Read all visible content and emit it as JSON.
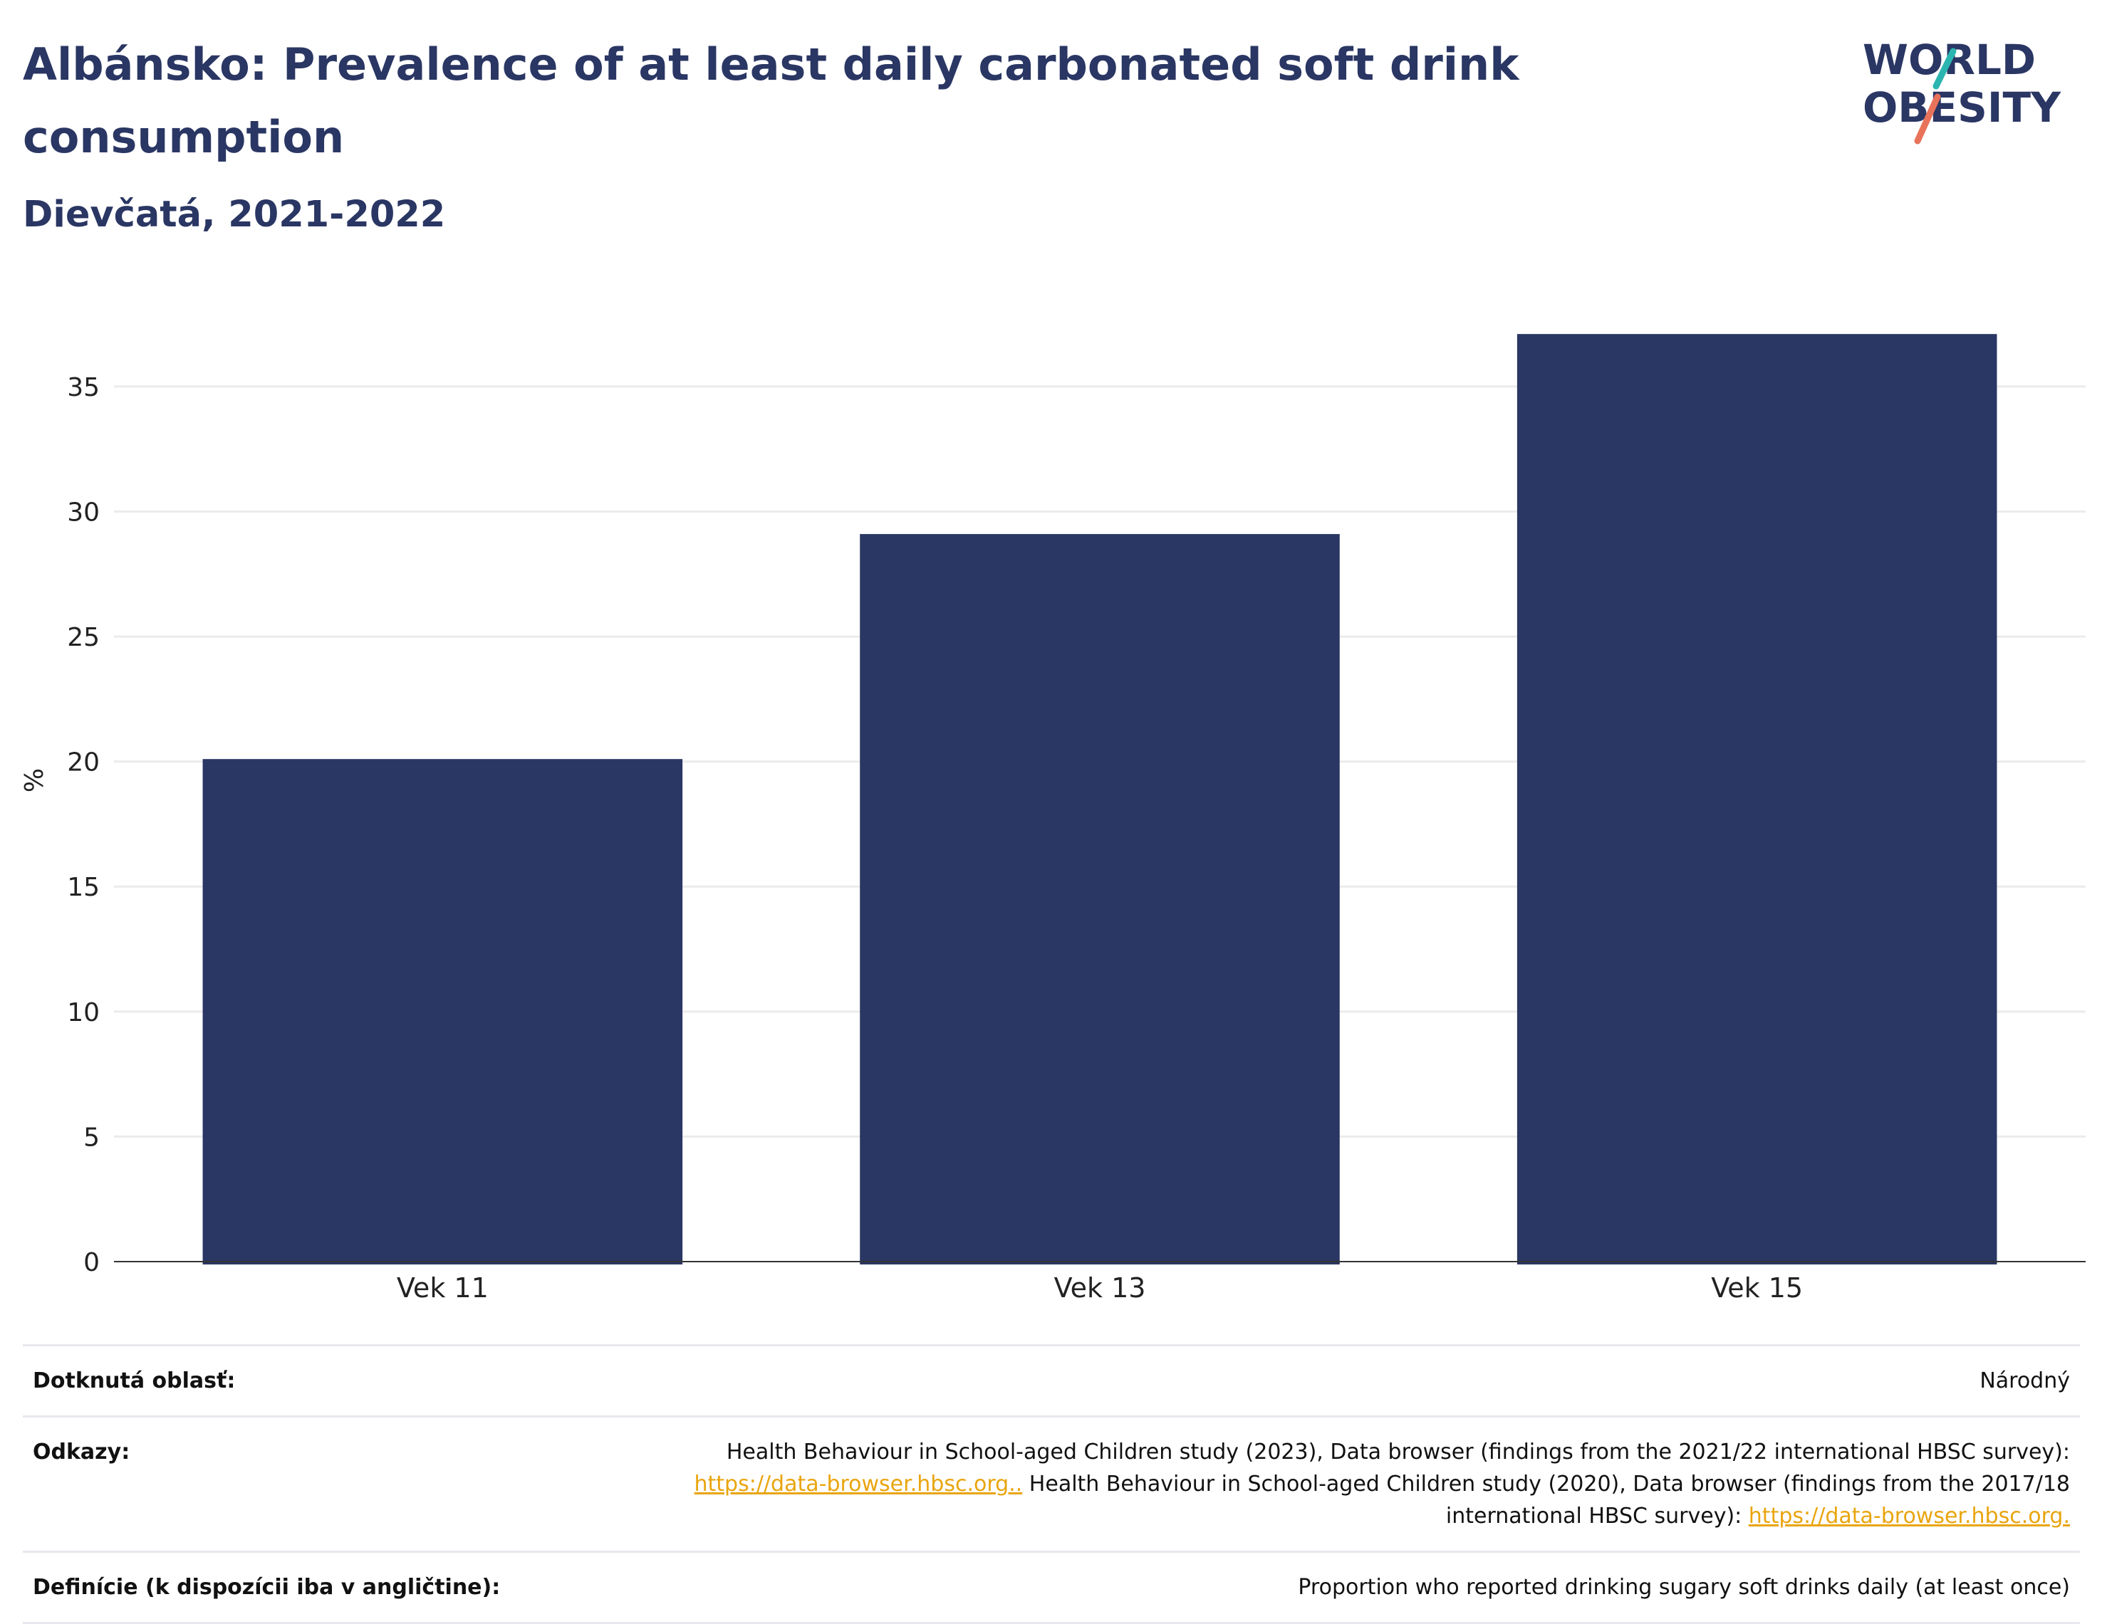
{
  "header": {
    "title": "Albánsko: Prevalence of at least daily carbonated soft drink consumption",
    "subtitle": "Dievčatá, 2021-2022"
  },
  "logo": {
    "line1": "WORLD",
    "line2": "OBESITY",
    "colors": {
      "text": "#2a3663",
      "slash_top": "#2bb5b0",
      "slash_bottom": "#e8735a"
    }
  },
  "chart_data": {
    "type": "bar",
    "categories": [
      "Vek 11",
      "Vek 13",
      "Vek 15"
    ],
    "values": [
      20.1,
      29.1,
      37.1
    ],
    "ylabel": "%",
    "xlabel": "",
    "ylim": [
      0,
      38.5
    ],
    "yticks": [
      0,
      5,
      10,
      15,
      20,
      25,
      30,
      35
    ],
    "grid": true,
    "bar_color": "#2a3663"
  },
  "meta": {
    "area_label": "Dotknutá oblasť:",
    "area_value": "Národný",
    "refs_label": "Odkazy:",
    "refs_text1": "Health Behaviour in School-aged Children study (2023), Data browser (findings from the 2021/22 international HBSC survey):",
    "refs_link1": "https://data-browser.hbsc.org..",
    "refs_text2": " Health Behaviour in School-aged Children study (2020), Data browser (findings from the 2017/18 international HBSC survey): ",
    "refs_link2": "https://data-browser.hbsc.org.",
    "def_label": "Definície (k dispozícii iba v angličtine):",
    "def_value": "Proportion who reported drinking sugary soft drinks daily (at least once)"
  }
}
